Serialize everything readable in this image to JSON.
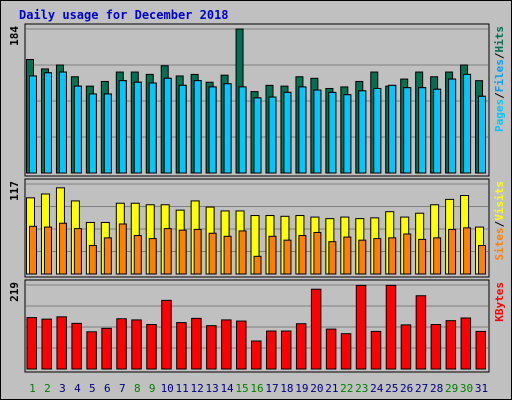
{
  "chart_data": {
    "type": "bar",
    "title": "Daily usage for December 2018",
    "categories": [
      "1",
      "2",
      "3",
      "4",
      "5",
      "6",
      "7",
      "8",
      "9",
      "10",
      "11",
      "12",
      "13",
      "14",
      "15",
      "16",
      "17",
      "18",
      "19",
      "20",
      "21",
      "22",
      "23",
      "24",
      "25",
      "26",
      "27",
      "28",
      "29",
      "30",
      "31"
    ],
    "weekend_days": [
      "1",
      "2",
      "8",
      "9",
      "15",
      "16",
      "22",
      "23",
      "29",
      "30"
    ],
    "colors": {
      "title": "#0000cc",
      "hits": "#007050",
      "files": "#00a0ff",
      "pages": "#00c8ff",
      "visits": "#ffff00",
      "sites": "#ff8000",
      "kbytes": "#ff0000",
      "weekend_label": "#008000",
      "weekday_label": "#000080"
    },
    "panels": [
      {
        "id": "hits-files-pages",
        "ymax_label": "184",
        "ylim": [
          0,
          184
        ],
        "legend": [
          {
            "label": "Pages",
            "color": "#00c8ff"
          },
          {
            "label": "/",
            "color": "#000000"
          },
          {
            "label": "Files",
            "color": "#00a0ff"
          },
          {
            "label": "/",
            "color": "#000000"
          },
          {
            "label": "Hits",
            "color": "#007050"
          }
        ],
        "series": [
          {
            "name": "Hits",
            "color": "#007050",
            "values": [
              145,
              133,
              138,
              123,
              111,
              117,
              129,
              129,
              126,
              137,
              124,
              126,
              116,
              125,
              184,
              104,
              112,
              111,
              123,
              121,
              108,
              110,
              117,
              129,
              111,
              120,
              129,
              123,
              129,
              138,
              118
            ]
          },
          {
            "name": "Files",
            "color": "#00a0ff",
            "values": [
              124,
              128,
              129,
              111,
              101,
              101,
              118,
              116,
              115,
              121,
              112,
              118,
              110,
              114,
              110,
              96,
              97,
              103,
              110,
              106,
              103,
              100,
              105,
              108,
              112,
              109,
              109,
              107,
              120,
              126,
              98
            ]
          },
          {
            "name": "Pages",
            "color": "#00c8ff",
            "values": [
              124,
              128,
              129,
              111,
              101,
              101,
              118,
              116,
              115,
              121,
              112,
              118,
              110,
              114,
              110,
              96,
              97,
              103,
              110,
              106,
              103,
              100,
              105,
              108,
              112,
              109,
              109,
              107,
              120,
              126,
              98
            ]
          }
        ]
      },
      {
        "id": "visits-sites",
        "ymax_label": "117",
        "ylim": [
          0,
          117
        ],
        "legend": [
          {
            "label": "Sites",
            "color": "#ff8000"
          },
          {
            "label": "/",
            "color": "#000000"
          },
          {
            "label": "Visits",
            "color": "#ffff00"
          }
        ],
        "series": [
          {
            "name": "Visits",
            "color": "#ffff00",
            "values": [
              99,
              104,
              112,
              95,
              67,
              67,
              92,
              92,
              90,
              90,
              83,
              95,
              87,
              82,
              82,
              76,
              76,
              75,
              76,
              74,
              72,
              74,
              72,
              73,
              81,
              74,
              79,
              90,
              97,
              102,
              61
            ]
          },
          {
            "name": "Sites",
            "color": "#ff8000",
            "values": [
              62,
              61,
              66,
              59,
              37,
              47,
              65,
              50,
              46,
              59,
              57,
              58,
              53,
              49,
              56,
              23,
              49,
              44,
              50,
              54,
              42,
              48,
              44,
              46,
              47,
              52,
              45,
              47,
              58,
              60,
              37
            ]
          }
        ]
      },
      {
        "id": "kbytes",
        "ymax_label": "219",
        "ylim": [
          0,
          219
        ],
        "legend": [
          {
            "label": "KBytes",
            "color": "#ff0000"
          }
        ],
        "series": [
          {
            "name": "KBytes",
            "color": "#ff0000",
            "values": [
              134,
              130,
              136,
              119,
              97,
              106,
              131,
              128,
              116,
              179,
              121,
              132,
              113,
              128,
              125,
              73,
              99,
              99,
              118,
              208,
              104,
              92,
              218,
              98,
              218,
              115,
              191,
              116,
              126,
              133,
              98
            ]
          }
        ]
      }
    ]
  }
}
